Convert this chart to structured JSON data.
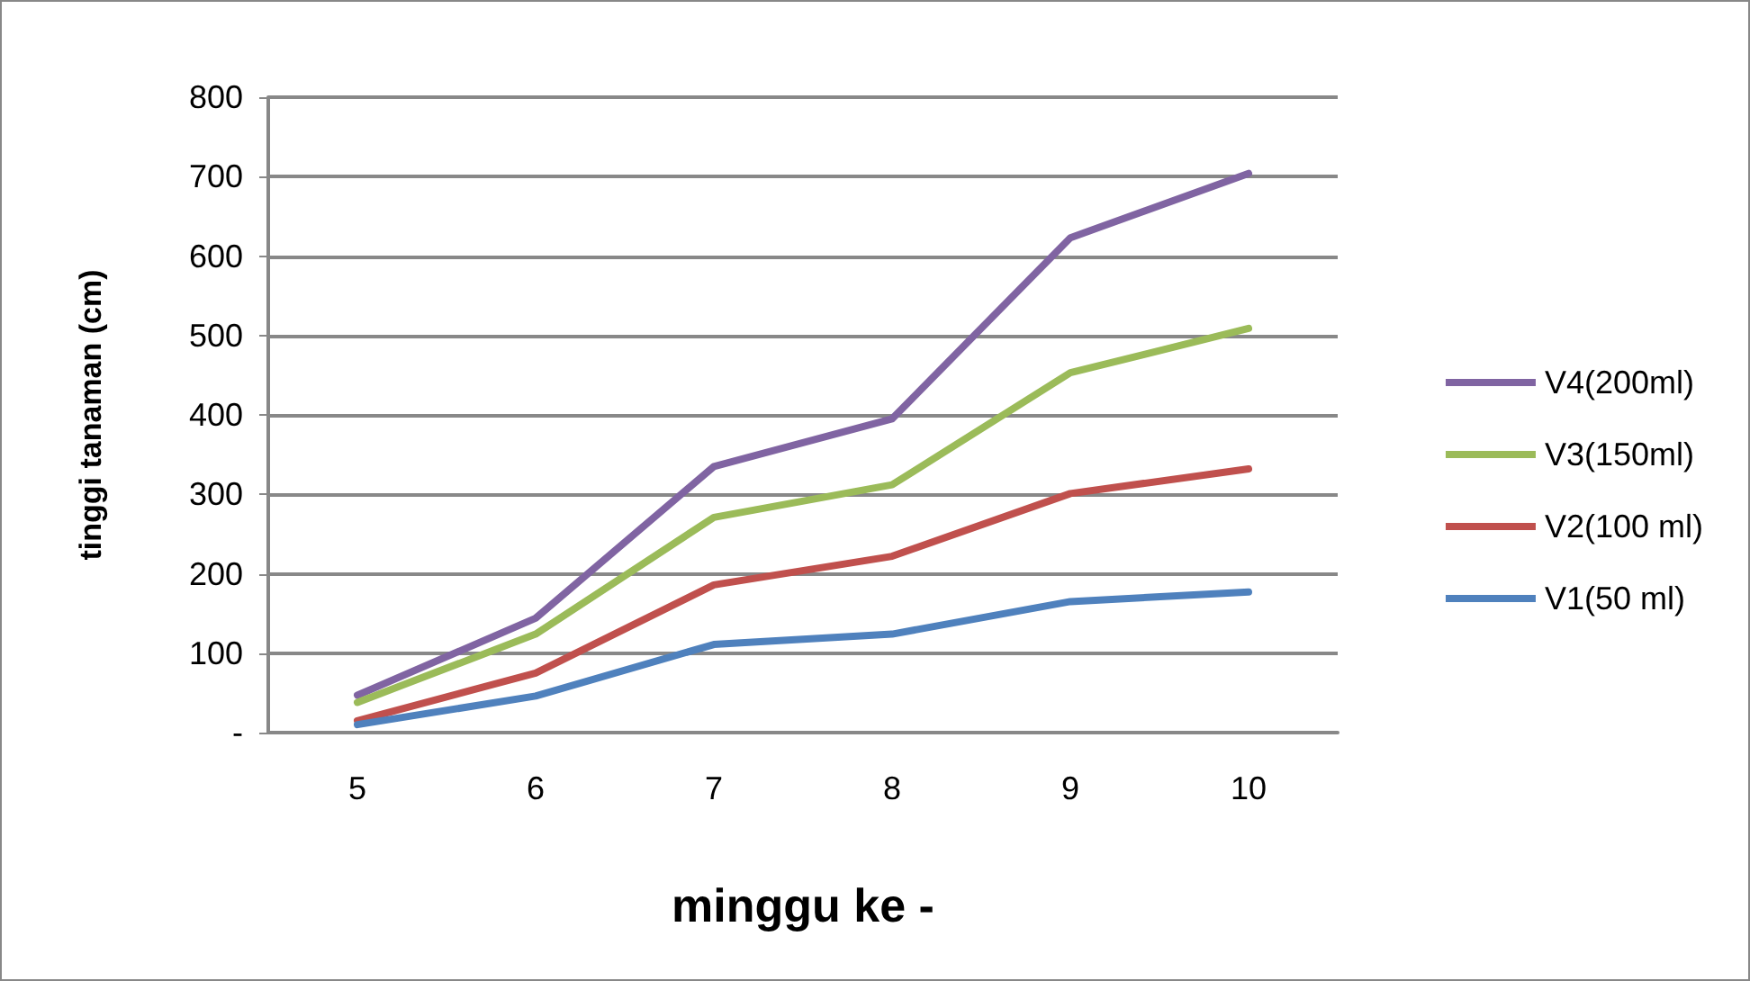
{
  "chart_data": {
    "type": "line",
    "xlabel": "minggu ke -",
    "ylabel": "tinggi tanaman (cm)",
    "categories": [
      "5",
      "6",
      "7",
      "8",
      "9",
      "10"
    ],
    "series": [
      {
        "name": "V4(200ml)",
        "color": "#8064a2",
        "values": [
          47,
          144,
          335,
          395,
          623,
          704
        ]
      },
      {
        "name": "V3(150ml)",
        "color": "#9bbb59",
        "values": [
          38,
          124,
          271,
          312,
          453,
          509
        ]
      },
      {
        "name": "V2(100 ml)",
        "color": "#c0504d",
        "values": [
          15,
          75,
          186,
          222,
          301,
          332
        ]
      },
      {
        "name": "V1(50 ml)",
        "color": "#4f81bd",
        "values": [
          10,
          46,
          111,
          124,
          165,
          177
        ]
      }
    ],
    "ylim": [
      0,
      800
    ],
    "yticks": [
      {
        "value": 0,
        "label": "-"
      },
      100,
      200,
      300,
      400,
      500,
      600,
      700,
      800
    ],
    "grid": "y",
    "legend": "right",
    "marker": "none",
    "line_style": "solid"
  }
}
